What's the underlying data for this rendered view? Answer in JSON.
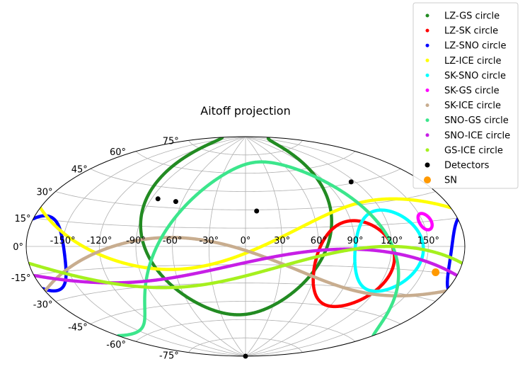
{
  "chart_data": {
    "type": "scatter",
    "projection": "aitoff",
    "title": "Aitoff projection",
    "grid": true,
    "legend_position": "top-right",
    "x_ticks": [
      "-150°",
      "-120°",
      "-90°",
      "-60°",
      "-30°",
      "0°",
      "30°",
      "60°",
      "90°",
      "120°",
      "150°"
    ],
    "x_tick_values": [
      -150,
      -120,
      -90,
      -60,
      -30,
      0,
      30,
      60,
      90,
      120,
      150
    ],
    "y_ticks": [
      "-75°",
      "-60°",
      "-45°",
      "-30°",
      "-15°",
      "0°",
      "15°",
      "30°",
      "45°",
      "60°",
      "75°"
    ],
    "y_tick_values": [
      -75,
      -60,
      -45,
      -30,
      -15,
      0,
      15,
      30,
      45,
      60,
      75
    ],
    "series": [
      {
        "name": "LZ-GS circle",
        "color": "#228B22",
        "pole": [
          -8,
          20
        ],
        "radius": 76
      },
      {
        "name": "LZ-SK circle",
        "color": "#FF0000",
        "pole": [
          91,
          -13
        ],
        "radius": 32
      },
      {
        "name": "LZ-SNO circle",
        "color": "#0000FF",
        "pole": [
          10,
          4
        ],
        "radius": 159
      },
      {
        "name": "LZ-ICE circle",
        "color": "#FFFF00",
        "pole": [
          -60,
          65
        ],
        "radius": 83
      },
      {
        "name": "SK-SNO circle",
        "color": "#00FFFF",
        "pole": [
          118,
          -3
        ],
        "radius": 28
      },
      {
        "name": "SK-GS circle",
        "color": "#FF00FF",
        "pole": [
          -28,
          -15
        ],
        "radius": 175
      },
      {
        "name": "SK-ICE circle",
        "color": "#C8AD8F",
        "pole": [
          -60,
          -70
        ],
        "radius": 77
      },
      {
        "name": "SNO-GS circle",
        "color": "#3CE68C",
        "pole": [
          24,
          -27
        ],
        "radius": 96
      },
      {
        "name": "SNO-ICE circle",
        "color": "#C71FE6",
        "pole": [
          -95,
          78
        ],
        "radius": 104
      },
      {
        "name": "GS-ICE circle",
        "color": "#A5F01E",
        "pole": [
          -62,
          74
        ],
        "radius": 106
      }
    ],
    "detectors": {
      "name": "Detectors",
      "color": "#000000",
      "points": [
        [
          -84,
          36
        ],
        [
          -66,
          35
        ],
        [
          10,
          29
        ],
        [
          116,
          46
        ],
        [
          0,
          -90
        ]
      ]
    },
    "sn": {
      "name": "SN",
      "color": "#FF9900",
      "point": [
        161,
        -15
      ]
    }
  }
}
